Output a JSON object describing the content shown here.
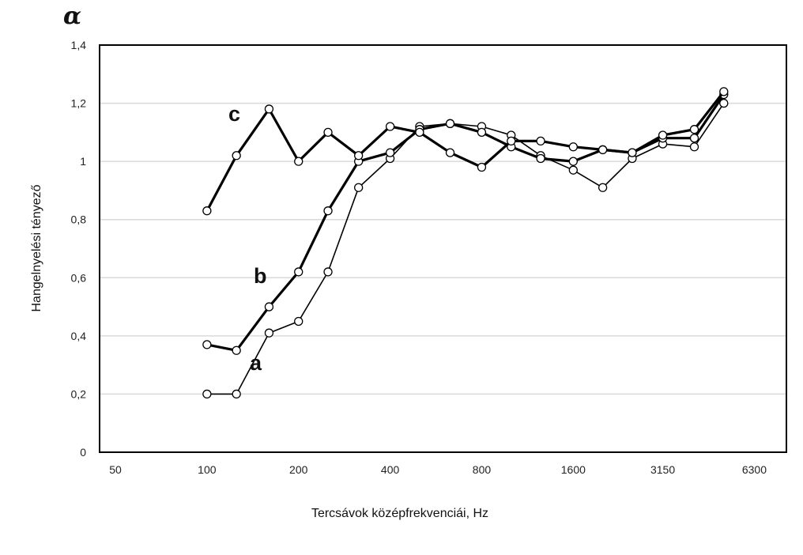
{
  "chart_data": {
    "type": "line",
    "title": "",
    "corner_symbol": "α",
    "xlabel": "Tercsávok középfrekvenciái, Hz",
    "ylabel": "Hangelnyelési tényező",
    "x_tick_labels": [
      "50",
      "100",
      "200",
      "400",
      "800",
      "1600",
      "3150",
      "6300"
    ],
    "y_tick_labels": [
      "0",
      "0,2",
      "0,4",
      "0,6",
      "0,8",
      "1",
      "1,2",
      "1,4"
    ],
    "ylim": [
      0,
      1.4
    ],
    "grid": true,
    "legend": "none",
    "x": [
      100,
      125,
      160,
      200,
      250,
      315,
      400,
      500,
      630,
      800,
      1000,
      1250,
      1600,
      2000,
      2500,
      3150,
      4000,
      5000
    ],
    "series": [
      {
        "name": "a",
        "values": [
          0.2,
          0.2,
          0.41,
          0.45,
          0.62,
          0.91,
          1.01,
          1.12,
          1.13,
          1.12,
          1.09,
          1.02,
          0.97,
          0.91,
          1.01,
          1.06,
          1.05,
          1.2
        ]
      },
      {
        "name": "b",
        "values": [
          0.37,
          0.35,
          0.5,
          0.62,
          0.83,
          1.0,
          1.03,
          1.11,
          1.13,
          1.1,
          1.05,
          1.01,
          1.0,
          1.04,
          1.03,
          1.08,
          1.08,
          1.23
        ]
      },
      {
        "name": "c",
        "values": [
          0.83,
          1.02,
          1.18,
          1.0,
          1.1,
          1.02,
          1.12,
          1.1,
          1.03,
          0.98,
          1.07,
          1.07,
          1.05,
          1.04,
          1.03,
          1.09,
          1.11,
          1.24
        ]
      }
    ],
    "colors": {
      "line": "#000000",
      "marker_fill": "#ffffff",
      "grid": "#d9d9d9",
      "frame": "#000000"
    }
  }
}
